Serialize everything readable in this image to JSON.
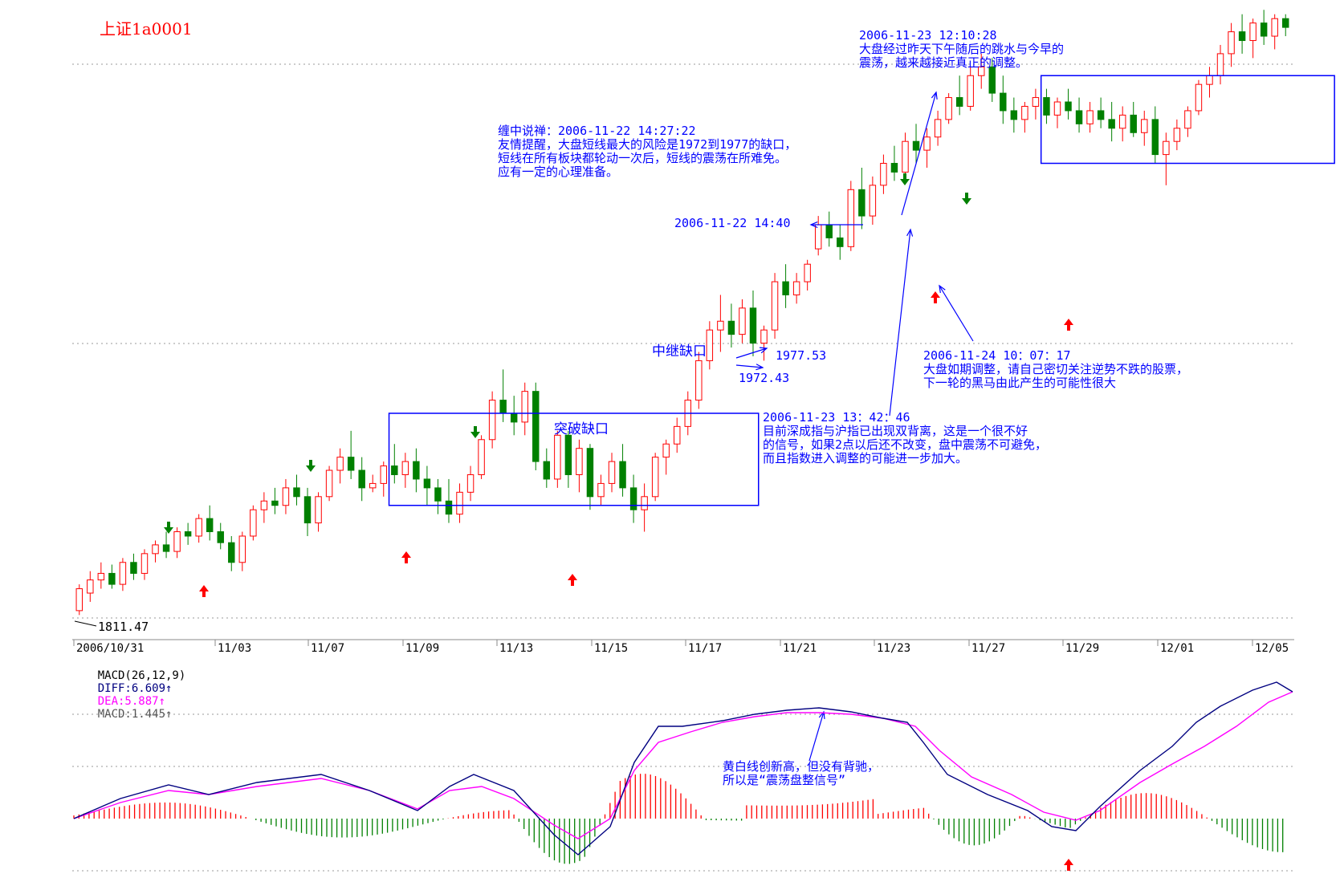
{
  "title": "上证1a0001",
  "colors": {
    "up": "#ff0000",
    "down": "#008000",
    "box": "#0000ff",
    "diff": "#000080",
    "dea": "#ff00ff",
    "grid": "#999999",
    "annotation": "#0000ff"
  },
  "annotations": {
    "a1": {
      "lines": [
        "2006-11-23 12:10:28",
        "大盘经过昨天下午随后的跳水与今早的",
        "震荡，越来越接近真正的调整。"
      ]
    },
    "a2": {
      "lines": [
        "缠中说禅：2006-11-22 14:27:22",
        "友情提醒，大盘短线最大的风险是1972到1977的缺口，",
        "短线在所有板块都轮动一次后，短线的震荡在所难免。",
        "应有一定的心理准备。"
      ]
    },
    "a3": {
      "text": "2006-11-22 14:40"
    },
    "a4": {
      "lines": [
        "2006-11-24 10：07：17",
        "大盘如期调整，请自己密切关注逆势不跌的股票，",
        "下一轮的黑马由此产生的可能性很大"
      ]
    },
    "a5": {
      "lines": [
        "2006-11-23 13：42：46",
        "目前深成指与沪指已出现双背离，这是一个很不好",
        "的信号，如果2点以后还不改变，盘中震荡不可避免，",
        "而且指数进入调整的可能进一步加大。"
      ]
    },
    "a6": {
      "lines": [
        "黄白线创新高，但没有背驰，",
        "所以是“震荡盘整信号”"
      ]
    }
  },
  "gap_labels": {
    "relay": "中继缺口",
    "breakout": "突破缺口"
  },
  "price_labels": {
    "p1977": "1977.53",
    "p1972": "1972.43",
    "low": "1811.47"
  },
  "macd_legend": {
    "name": "MACD(26,12,9)",
    "diff": "DIFF:6.609",
    "dea": "DEA:5.887",
    "macd": "MACD:1.445"
  },
  "chart_data": {
    "type": "candlestick",
    "x_ticks": [
      "2006/10/31",
      "11/03",
      "11/07",
      "11/09",
      "11/13",
      "11/15",
      "11/17",
      "11/21",
      "11/23",
      "11/27",
      "11/29",
      "12/01",
      "12/05"
    ],
    "low_price": 1811.47,
    "gap_prices": [
      1972.43,
      1977.53
    ],
    "price_range": [
      1805,
      2085
    ],
    "candles_ohlc_approx": [
      [
        1812,
        1824,
        1810,
        1822
      ],
      [
        1820,
        1830,
        1816,
        1826
      ],
      [
        1826,
        1834,
        1822,
        1829
      ],
      [
        1829,
        1833,
        1822,
        1824
      ],
      [
        1824,
        1836,
        1821,
        1834
      ],
      [
        1834,
        1838,
        1826,
        1829
      ],
      [
        1829,
        1840,
        1826,
        1838
      ],
      [
        1838,
        1844,
        1834,
        1842
      ],
      [
        1842,
        1848,
        1836,
        1839
      ],
      [
        1839,
        1850,
        1836,
        1848
      ],
      [
        1848,
        1852,
        1842,
        1846
      ],
      [
        1846,
        1856,
        1843,
        1854
      ],
      [
        1854,
        1860,
        1844,
        1848
      ],
      [
        1848,
        1852,
        1840,
        1843
      ],
      [
        1843,
        1846,
        1830,
        1834
      ],
      [
        1834,
        1848,
        1830,
        1846
      ],
      [
        1846,
        1860,
        1844,
        1858
      ],
      [
        1858,
        1866,
        1852,
        1862
      ],
      [
        1862,
        1868,
        1856,
        1860
      ],
      [
        1860,
        1872,
        1856,
        1868
      ],
      [
        1868,
        1874,
        1860,
        1864
      ],
      [
        1864,
        1868,
        1846,
        1852
      ],
      [
        1852,
        1866,
        1848,
        1864
      ],
      [
        1864,
        1878,
        1862,
        1876
      ],
      [
        1876,
        1886,
        1870,
        1882
      ],
      [
        1882,
        1894,
        1872,
        1876
      ],
      [
        1876,
        1882,
        1862,
        1868
      ],
      [
        1868,
        1874,
        1866,
        1870
      ],
      [
        1870,
        1880,
        1864,
        1878
      ],
      [
        1878,
        1888,
        1870,
        1874
      ],
      [
        1874,
        1884,
        1868,
        1880
      ],
      [
        1880,
        1886,
        1866,
        1872
      ],
      [
        1872,
        1878,
        1860,
        1868
      ],
      [
        1868,
        1872,
        1856,
        1862
      ],
      [
        1862,
        1872,
        1852,
        1856
      ],
      [
        1856,
        1870,
        1852,
        1866
      ],
      [
        1866,
        1878,
        1862,
        1874
      ],
      [
        1874,
        1892,
        1872,
        1890
      ],
      [
        1890,
        1912,
        1886,
        1908
      ],
      [
        1908,
        1922,
        1898,
        1902
      ],
      [
        1902,
        1910,
        1892,
        1898
      ],
      [
        1898,
        1916,
        1892,
        1912
      ],
      [
        1912,
        1916,
        1876,
        1880
      ],
      [
        1880,
        1886,
        1868,
        1872
      ],
      [
        1872,
        1894,
        1868,
        1892
      ],
      [
        1892,
        1894,
        1868,
        1874
      ],
      [
        1874,
        1890,
        1866,
        1886
      ],
      [
        1886,
        1888,
        1858,
        1864
      ],
      [
        1864,
        1874,
        1860,
        1870
      ],
      [
        1870,
        1884,
        1866,
        1880
      ],
      [
        1880,
        1888,
        1864,
        1868
      ],
      [
        1868,
        1874,
        1852,
        1858
      ],
      [
        1858,
        1870,
        1848,
        1864
      ],
      [
        1864,
        1884,
        1862,
        1882
      ],
      [
        1882,
        1890,
        1874,
        1888
      ],
      [
        1888,
        1900,
        1884,
        1896
      ],
      [
        1896,
        1912,
        1892,
        1908
      ],
      [
        1908,
        1930,
        1904,
        1926
      ],
      [
        1926,
        1944,
        1922,
        1940
      ],
      [
        1940,
        1956,
        1930,
        1944
      ],
      [
        1944,
        1952,
        1932,
        1938
      ],
      [
        1938,
        1954,
        1934,
        1950
      ],
      [
        1950,
        1958,
        1928,
        1934
      ],
      [
        1934,
        1942,
        1926,
        1940
      ],
      [
        1940,
        1966,
        1936,
        1962
      ],
      [
        1962,
        1970,
        1950,
        1956
      ],
      [
        1956,
        1966,
        1952,
        1962
      ],
      [
        1962,
        1972,
        1958,
        1970
      ],
      [
        1977,
        1992,
        1974,
        1988
      ],
      [
        1988,
        1994,
        1978,
        1982
      ],
      [
        1982,
        1988,
        1972,
        1978
      ],
      [
        1978,
        2008,
        1976,
        2004
      ],
      [
        2004,
        2014,
        1986,
        1992
      ],
      [
        1992,
        2010,
        1988,
        2006
      ],
      [
        2006,
        2020,
        2002,
        2016
      ],
      [
        2016,
        2024,
        2008,
        2012
      ],
      [
        2012,
        2030,
        2008,
        2026
      ],
      [
        2026,
        2034,
        2016,
        2022
      ],
      [
        2022,
        2032,
        2014,
        2028
      ],
      [
        2028,
        2040,
        2024,
        2036
      ],
      [
        2036,
        2048,
        2034,
        2046
      ],
      [
        2046,
        2056,
        2038,
        2042
      ],
      [
        2042,
        2060,
        2040,
        2056
      ],
      [
        2056,
        2066,
        2050,
        2060
      ],
      [
        2060,
        2064,
        2044,
        2048
      ],
      [
        2048,
        2056,
        2034,
        2040
      ],
      [
        2040,
        2046,
        2030,
        2036
      ],
      [
        2036,
        2044,
        2030,
        2042
      ],
      [
        2042,
        2050,
        2036,
        2046
      ],
      [
        2046,
        2050,
        2034,
        2038
      ],
      [
        2038,
        2046,
        2032,
        2044
      ],
      [
        2044,
        2050,
        2036,
        2040
      ],
      [
        2040,
        2046,
        2030,
        2034
      ],
      [
        2034,
        2044,
        2030,
        2040
      ],
      [
        2040,
        2046,
        2032,
        2036
      ],
      [
        2036,
        2044,
        2026,
        2032
      ],
      [
        2032,
        2042,
        2026,
        2038
      ],
      [
        2038,
        2044,
        2028,
        2030
      ],
      [
        2030,
        2040,
        2024,
        2036
      ],
      [
        2036,
        2042,
        2016,
        2020
      ],
      [
        2020,
        2030,
        2006,
        2026
      ],
      [
        2026,
        2036,
        2022,
        2032
      ],
      [
        2032,
        2042,
        2028,
        2040
      ],
      [
        2040,
        2054,
        2038,
        2052
      ],
      [
        2052,
        2060,
        2046,
        2056
      ],
      [
        2056,
        2070,
        2052,
        2066
      ],
      [
        2066,
        2080,
        2060,
        2076
      ],
      [
        2076,
        2084,
        2066,
        2072
      ],
      [
        2072,
        2082,
        2064,
        2080
      ],
      [
        2080,
        2086,
        2070,
        2074
      ],
      [
        2074,
        2084,
        2068,
        2082
      ],
      [
        2082,
        2084,
        2074,
        2078
      ]
    ],
    "boxes": [
      {
        "from_index": 29,
        "to_index": 62,
        "price_top": 1902,
        "price_bottom": 1860
      },
      {
        "from_index": 89,
        "to_index": 115,
        "price_top": 2056,
        "price_bottom": 2016
      }
    ],
    "macd": {
      "diff_last": 6.609,
      "dea_last": 5.887,
      "macd_last": 1.445
    }
  }
}
